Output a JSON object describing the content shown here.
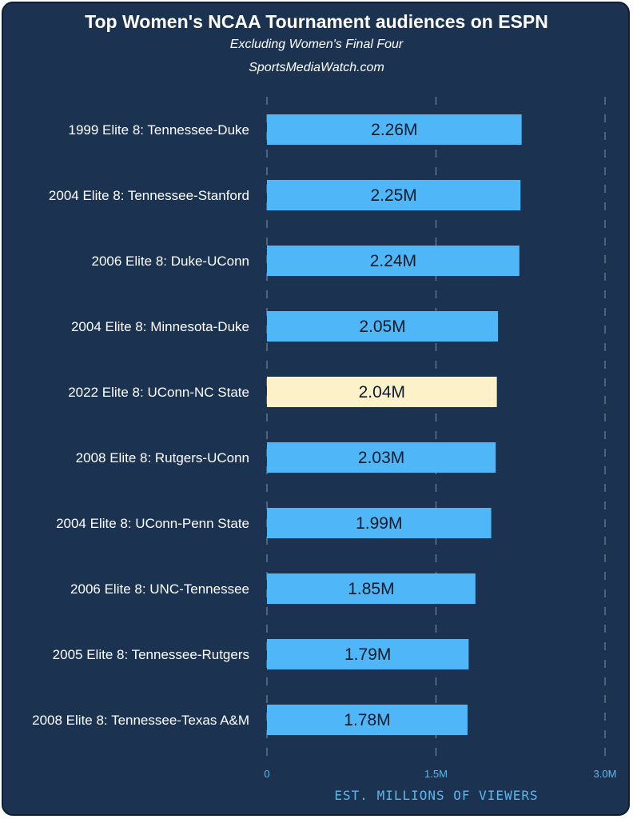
{
  "header": {
    "title": "Top Women's NCAA Tournament audiences on ESPN",
    "subtitle": "Excluding Women's Final Four",
    "source": "SportsMediaWatch.com"
  },
  "colors": {
    "background": "#1b3350",
    "bar": "#4fb7f7",
    "highlight_bar": "#fdf1c9",
    "axis_text": "#59b8f0",
    "text": "#ffffff"
  },
  "chart_data": {
    "type": "bar",
    "orientation": "horizontal",
    "title": "Top Women's NCAA Tournament audiences on ESPN",
    "subtitle": "Excluding Women's Final Four",
    "categories": [
      "1999 Elite 8: Tennessee-Duke",
      "2004 Elite 8: Tennessee-Stanford",
      "2006 Elite 8: Duke-UConn",
      "2004 Elite 8: Minnesota-Duke",
      "2022 Elite 8: UConn-NC State",
      "2008 Elite 8: Rutgers-UConn",
      "2004 Elite 8: UConn-Penn State",
      "2006 Elite 8: UNC-Tennessee",
      "2005 Elite 8: Tennessee-Rutgers",
      "2008 Elite 8: Tennessee-Texas A&M"
    ],
    "values": [
      2.26,
      2.25,
      2.24,
      2.05,
      2.04,
      2.03,
      1.99,
      1.85,
      1.79,
      1.78
    ],
    "data_labels": [
      "2.26M",
      "2.25M",
      "2.24M",
      "2.05M",
      "2.04M",
      "2.03M",
      "1.99M",
      "1.85M",
      "1.79M",
      "1.78M"
    ],
    "highlight_index": 4,
    "xlim": [
      0,
      3.0
    ],
    "x_ticks": [
      0,
      1.5,
      3.0
    ],
    "x_tick_labels": [
      "0",
      "1.5M",
      "3.0M"
    ],
    "xlabel": "EST. MILLIONS OF VIEWERS",
    "ylabel": "",
    "grid": true
  }
}
